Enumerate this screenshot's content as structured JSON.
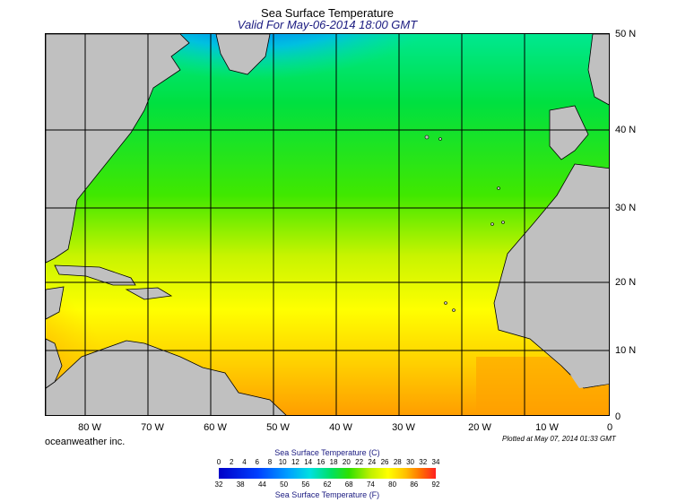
{
  "title": "Sea Surface Temperature",
  "subtitle": "Valid For May-06-2014 18:00 GMT",
  "lon_labels": [
    "80 W",
    "70 W",
    "60 W",
    "50 W",
    "40 W",
    "30 W",
    "20 W",
    "10 W",
    "0"
  ],
  "lat_labels": [
    "50 N",
    "40 N",
    "30 N",
    "20 N",
    "10 N",
    "0"
  ],
  "credit": "oceanweather inc.",
  "plotted": "Plotted at May 07, 2014 01:33 GMT",
  "colorbar": {
    "title_c": "Sea Surface Temperature (C)",
    "title_f": "Sea Surface Temperature (F)",
    "c_ticks": [
      "0",
      "2",
      "4",
      "6",
      "8",
      "10",
      "12",
      "14",
      "16",
      "18",
      "20",
      "22",
      "24",
      "26",
      "28",
      "30",
      "32",
      "34"
    ],
    "f_ticks": [
      "32",
      "38",
      "44",
      "50",
      "56",
      "62",
      "68",
      "74",
      "80",
      "86",
      "92"
    ]
  },
  "colors": {
    "land": "#c0c0c0",
    "cold": "#0030e0",
    "mid": "#00e000",
    "warm": "#ffff00",
    "hot": "#ff8000"
  }
}
